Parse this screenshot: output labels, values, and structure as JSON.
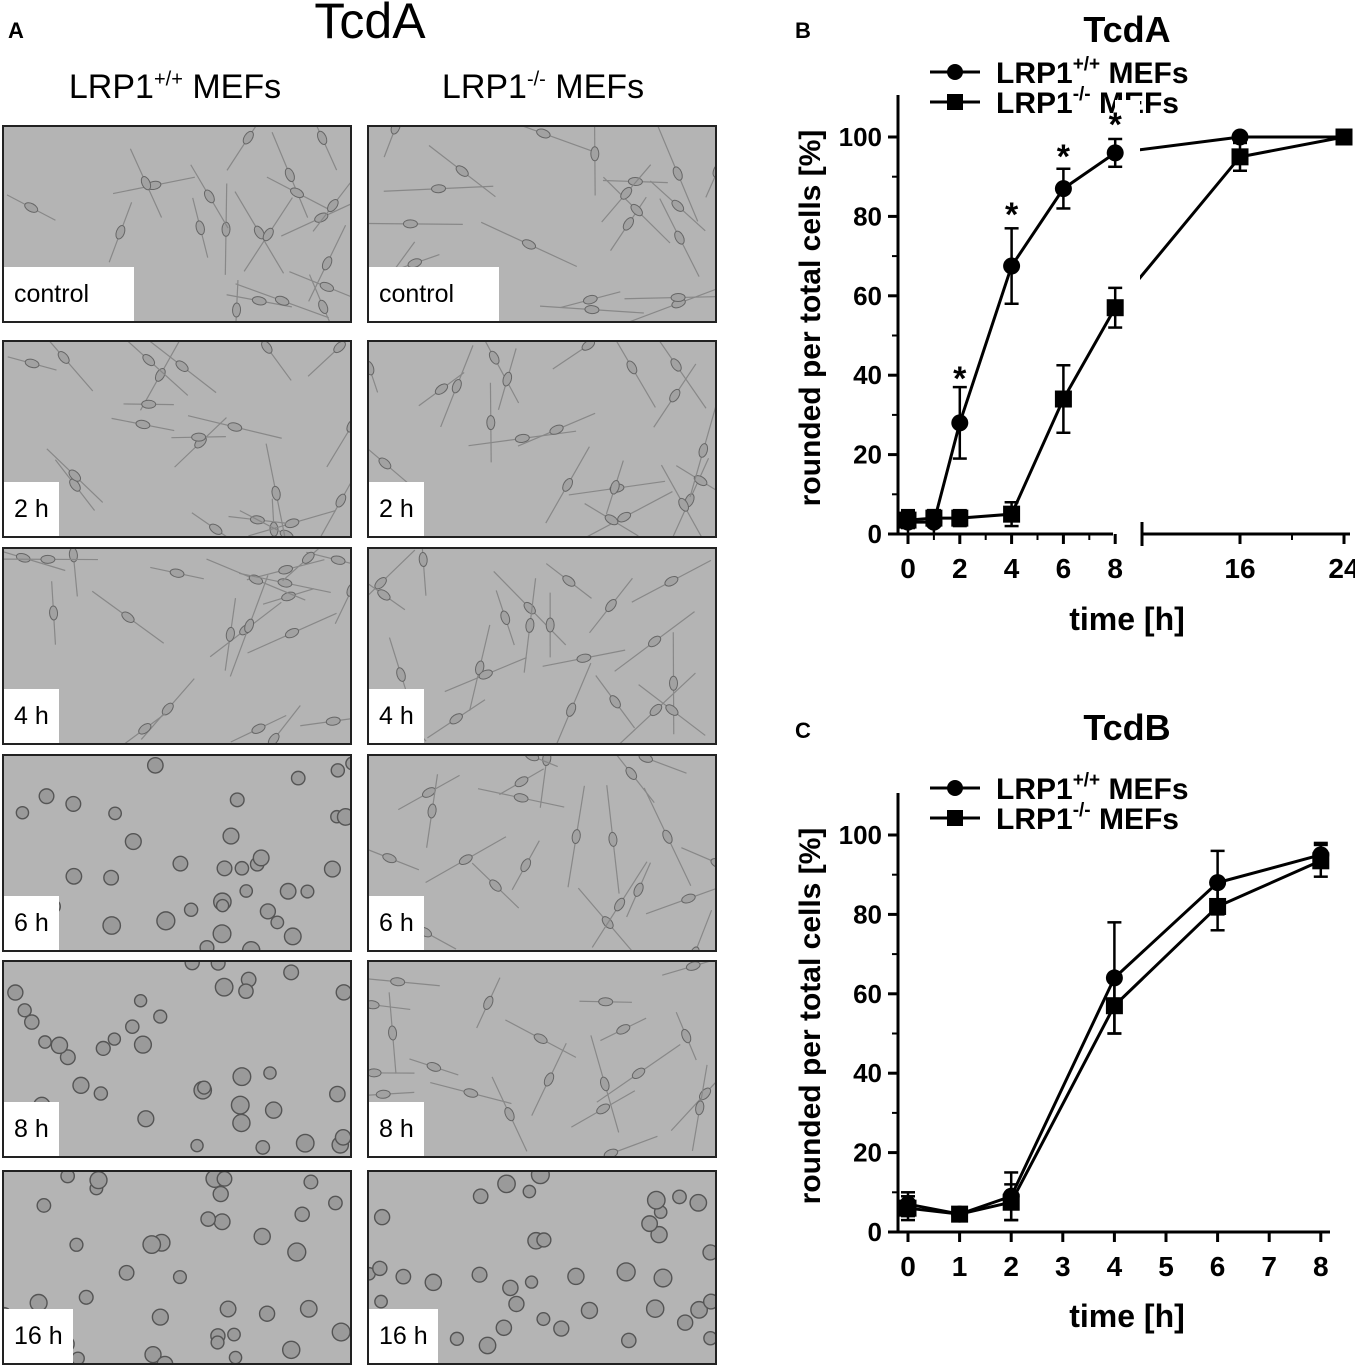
{
  "panel_a": {
    "letter": "A",
    "title": "TcdA",
    "columns": [
      {
        "base": "LRP1",
        "sup": "+/+",
        "rest": " MEFs"
      },
      {
        "base": "LRP1",
        "sup": "-/-",
        "rest": " MEFs"
      }
    ],
    "rows": [
      "control",
      "2 h",
      "4 h",
      "6 h",
      "8 h",
      "16 h"
    ]
  },
  "panel_b": {
    "letter": "B"
  },
  "panel_c": {
    "letter": "C"
  },
  "chart_data": [
    {
      "type": "line",
      "title": "TcdA",
      "xlabel": "time [h]",
      "ylabel": "rounded per total cells [%]",
      "x_axis_break": [
        8,
        16
      ],
      "x_ticks": [
        0,
        2,
        4,
        6,
        8,
        16,
        24
      ],
      "ylim": [
        0,
        110
      ],
      "y_ticks": [
        0,
        20,
        40,
        60,
        80,
        100
      ],
      "legend_position": "top-left",
      "series": [
        {
          "name": "LRP1+/+ MEFs",
          "legend_base": "LRP1",
          "legend_sup": "+/+",
          "legend_rest": " MEFs",
          "marker": "circle",
          "x": [
            0,
            1,
            2,
            4,
            6,
            8,
            16,
            24
          ],
          "y": [
            3,
            3,
            28,
            67.5,
            87,
            96,
            100,
            100
          ],
          "err": [
            3,
            3,
            9,
            9.5,
            5,
            3.5,
            0,
            0
          ]
        },
        {
          "name": "LRP1-/- MEFs",
          "legend_base": "LRP1",
          "legend_sup": "-/-",
          "legend_rest": " MEFs",
          "marker": "square",
          "x": [
            0,
            1,
            2,
            4,
            6,
            8,
            16,
            24
          ],
          "y": [
            3.5,
            4,
            4,
            5,
            34,
            57,
            95,
            100
          ],
          "err": [
            2,
            2,
            2,
            3,
            8.5,
            5,
            3.5,
            0
          ]
        }
      ],
      "annotations": [
        {
          "text": "*",
          "x": 2
        },
        {
          "text": "*",
          "x": 4
        },
        {
          "text": "*",
          "x": 6
        },
        {
          "text": "*",
          "x": 8
        }
      ]
    },
    {
      "type": "line",
      "title": "TcdB",
      "xlabel": "time [h]",
      "ylabel": "rounded per total cells [%]",
      "x_ticks": [
        0,
        1,
        2,
        3,
        4,
        5,
        6,
        7,
        8
      ],
      "ylim": [
        0,
        110
      ],
      "y_ticks": [
        0,
        20,
        40,
        60,
        80,
        100
      ],
      "legend_position": "top-left",
      "series": [
        {
          "name": "LRP1+/+ MEFs",
          "legend_base": "LRP1",
          "legend_sup": "+/+",
          "legend_rest": " MEFs",
          "marker": "circle",
          "x": [
            0,
            1,
            2,
            4,
            6,
            8
          ],
          "y": [
            7,
            4.5,
            9,
            64,
            88,
            95
          ],
          "err": [
            3,
            1.5,
            6,
            14,
            8,
            3
          ]
        },
        {
          "name": "LRP1-/- MEFs",
          "legend_base": "LRP1",
          "legend_sup": "-/-",
          "legend_rest": " MEFs",
          "marker": "square",
          "x": [
            0,
            1,
            2,
            4,
            6,
            8
          ],
          "y": [
            6,
            4.5,
            7.5,
            57,
            82,
            93.5
          ],
          "err": [
            3,
            1.5,
            4.5,
            7,
            6,
            4
          ]
        }
      ]
    }
  ]
}
